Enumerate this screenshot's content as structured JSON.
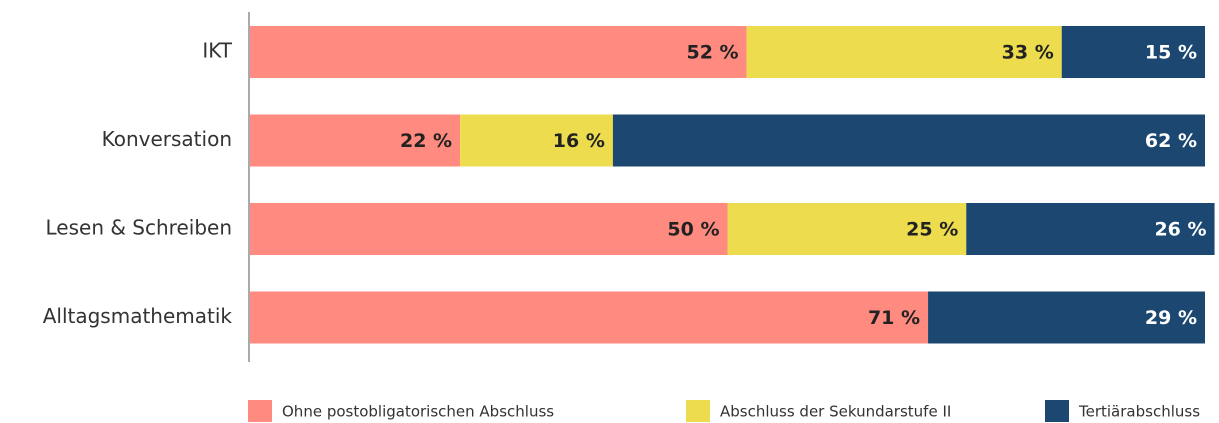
{
  "chart_data": {
    "type": "stacked-bar-horizontal",
    "categories": [
      "IKT",
      "Konversation",
      "Lesen & Schreiben",
      "Alltagsmathematik"
    ],
    "series": [
      {
        "name": "Ohne postobligatorischen Abschluss",
        "color": "#ff8a80",
        "values": [
          52,
          22,
          50,
          71
        ],
        "value_labels": [
          "52 %",
          "22 %",
          "50 %",
          "71 %"
        ]
      },
      {
        "name": "Abschluss der Sekundarstufe II",
        "color": "#ecdc4e",
        "values": [
          33,
          16,
          25,
          null
        ],
        "value_labels": [
          "33 %",
          "16 %",
          "25 %",
          null
        ]
      },
      {
        "name": "Tertiärabschluss",
        "color": "#1b4770",
        "values": [
          15,
          62,
          26,
          29
        ],
        "value_labels": [
          "15 %",
          "62 %",
          "26 %",
          "29 %"
        ]
      }
    ],
    "xlim": [
      0,
      100
    ],
    "legend": "bottom"
  }
}
